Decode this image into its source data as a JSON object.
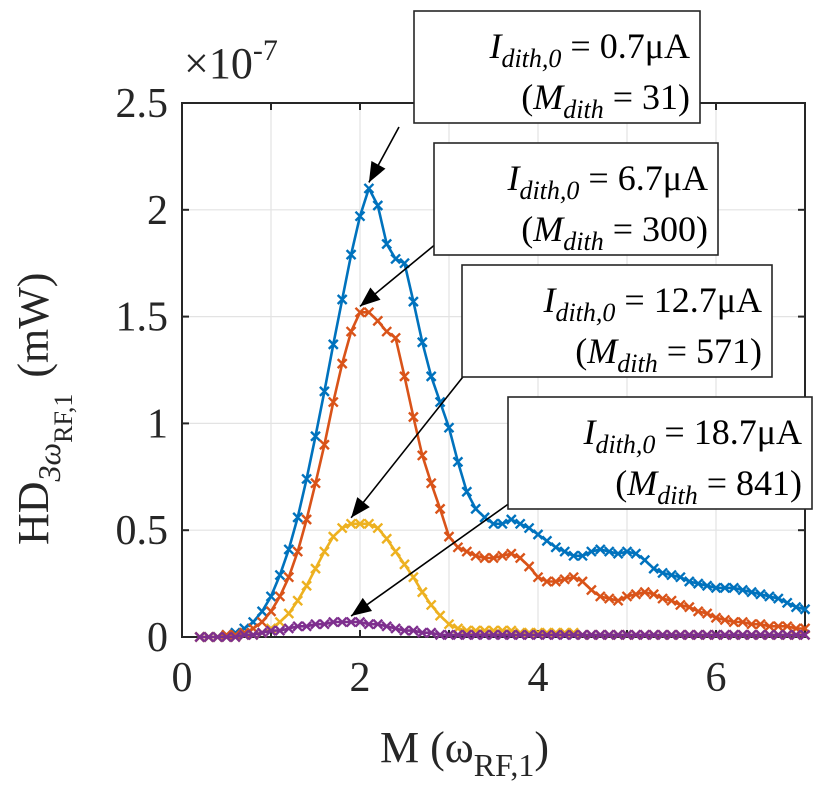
{
  "chart_data": {
    "type": "line",
    "xlabel_main": "M (ω",
    "xlabel_sub": "RF,1",
    "xlabel_close": ")",
    "ylabel_main": "HD",
    "ylabel_sub": "3ω",
    "ylabel_subsub": "RF,1",
    "ylabel_unit": "(mW)",
    "y_exponent_base": "×10",
    "y_exponent_power": "-7",
    "xlim": [
      0,
      7
    ],
    "ylim": [
      0,
      2.5
    ],
    "x_ticks": [
      0,
      2,
      4,
      6
    ],
    "x_tick_labels": [
      "0",
      "2",
      "4",
      "6"
    ],
    "y_ticks": [
      0,
      0.5,
      1,
      1.5,
      2,
      2.5
    ],
    "y_tick_labels": [
      "0",
      "0.5",
      "1",
      "1.5",
      "2",
      "2.5"
    ],
    "grid": true,
    "series": [
      {
        "color": "#0072BD",
        "x": [
          0.2,
          0.3,
          0.4,
          0.5,
          0.6,
          0.7,
          0.8,
          0.9,
          1.0,
          1.1,
          1.2,
          1.3,
          1.4,
          1.5,
          1.6,
          1.7,
          1.8,
          1.9,
          2.0,
          2.1,
          2.2,
          2.3,
          2.4,
          2.5,
          2.6,
          2.7,
          2.8,
          2.9,
          3.0,
          3.1,
          3.2,
          3.3,
          3.4,
          3.5,
          3.6,
          3.7,
          3.8,
          3.9,
          4.0,
          4.1,
          4.2,
          4.3,
          4.4,
          4.5,
          4.6,
          4.7,
          4.8,
          4.9,
          5.0,
          5.1,
          5.2,
          5.3,
          5.4,
          5.5,
          5.6,
          5.7,
          5.8,
          5.9,
          6.0,
          6.1,
          6.2,
          6.3,
          6.4,
          6.5,
          6.6,
          6.7,
          6.8,
          6.9,
          7.0
        ],
        "y": [
          0.0,
          0.0,
          0.0,
          0.01,
          0.02,
          0.04,
          0.07,
          0.12,
          0.19,
          0.29,
          0.41,
          0.56,
          0.74,
          0.94,
          1.15,
          1.37,
          1.58,
          1.79,
          1.97,
          2.1,
          2.02,
          1.84,
          1.77,
          1.75,
          1.57,
          1.38,
          1.22,
          1.1,
          0.98,
          0.82,
          0.68,
          0.6,
          0.56,
          0.53,
          0.53,
          0.55,
          0.53,
          0.51,
          0.48,
          0.45,
          0.42,
          0.4,
          0.38,
          0.38,
          0.4,
          0.41,
          0.4,
          0.39,
          0.4,
          0.39,
          0.36,
          0.32,
          0.3,
          0.29,
          0.28,
          0.26,
          0.25,
          0.24,
          0.23,
          0.23,
          0.23,
          0.22,
          0.21,
          0.2,
          0.19,
          0.18,
          0.16,
          0.14,
          0.13
        ]
      },
      {
        "color": "#D95319",
        "x": [
          0.2,
          0.3,
          0.4,
          0.5,
          0.6,
          0.7,
          0.8,
          0.9,
          1.0,
          1.1,
          1.2,
          1.3,
          1.4,
          1.5,
          1.6,
          1.7,
          1.8,
          1.9,
          2.0,
          2.1,
          2.2,
          2.3,
          2.4,
          2.5,
          2.6,
          2.7,
          2.8,
          2.9,
          3.0,
          3.1,
          3.2,
          3.3,
          3.4,
          3.5,
          3.6,
          3.7,
          3.8,
          3.9,
          4.0,
          4.1,
          4.2,
          4.3,
          4.4,
          4.5,
          4.6,
          4.7,
          4.8,
          4.9,
          5.0,
          5.1,
          5.2,
          5.3,
          5.4,
          5.5,
          5.6,
          5.7,
          5.8,
          5.9,
          6.0,
          6.1,
          6.2,
          6.3,
          6.4,
          6.5,
          6.6,
          6.7,
          6.8,
          6.9,
          7.0
        ],
        "y": [
          0.0,
          0.0,
          0.0,
          0.01,
          0.01,
          0.02,
          0.04,
          0.07,
          0.12,
          0.19,
          0.28,
          0.4,
          0.55,
          0.72,
          0.9,
          1.1,
          1.28,
          1.43,
          1.52,
          1.52,
          1.48,
          1.43,
          1.4,
          1.22,
          1.03,
          0.85,
          0.72,
          0.6,
          0.47,
          0.42,
          0.4,
          0.38,
          0.37,
          0.37,
          0.38,
          0.39,
          0.37,
          0.33,
          0.28,
          0.26,
          0.26,
          0.27,
          0.28,
          0.26,
          0.22,
          0.19,
          0.18,
          0.17,
          0.19,
          0.2,
          0.21,
          0.2,
          0.18,
          0.17,
          0.15,
          0.14,
          0.12,
          0.11,
          0.09,
          0.08,
          0.07,
          0.07,
          0.06,
          0.06,
          0.05,
          0.05,
          0.05,
          0.04,
          0.04
        ]
      },
      {
        "color": "#EDB120",
        "x": [
          0.2,
          0.3,
          0.4,
          0.5,
          0.6,
          0.7,
          0.8,
          0.9,
          1.0,
          1.1,
          1.2,
          1.3,
          1.4,
          1.5,
          1.6,
          1.7,
          1.8,
          1.9,
          2.0,
          2.1,
          2.2,
          2.3,
          2.4,
          2.5,
          2.6,
          2.7,
          2.8,
          2.9,
          3.0,
          3.1,
          3.2,
          3.3,
          3.4,
          3.5,
          3.6,
          3.7,
          3.8,
          3.9,
          4.0,
          4.1,
          4.2,
          4.3,
          4.4,
          4.5,
          4.6,
          4.7,
          4.8,
          4.9,
          5.0,
          5.1,
          5.2,
          5.3,
          5.4,
          5.5,
          5.6,
          5.7,
          5.8,
          5.9,
          6.0,
          6.1,
          6.2,
          6.3,
          6.4,
          6.5,
          6.6,
          6.7,
          6.8,
          6.9,
          7.0
        ],
        "y": [
          0.0,
          0.0,
          0.0,
          0.0,
          0.0,
          0.01,
          0.01,
          0.02,
          0.04,
          0.07,
          0.11,
          0.17,
          0.24,
          0.32,
          0.4,
          0.47,
          0.51,
          0.53,
          0.53,
          0.53,
          0.51,
          0.46,
          0.4,
          0.34,
          0.28,
          0.21,
          0.15,
          0.1,
          0.06,
          0.04,
          0.03,
          0.03,
          0.03,
          0.03,
          0.03,
          0.03,
          0.02,
          0.02,
          0.02,
          0.02,
          0.02,
          0.02,
          0.02,
          0.01,
          0.01,
          0.01,
          0.01,
          0.01,
          0.01,
          0.01,
          0.01,
          0.01,
          0.01,
          0.01,
          0.01,
          0.01,
          0.01,
          0.01,
          0.01,
          0.01,
          0.01,
          0.01,
          0.01,
          0.01,
          0.01,
          0.01,
          0.01,
          0.01,
          0.01
        ]
      },
      {
        "color": "#7E2F8E",
        "x": [
          0.2,
          0.3,
          0.4,
          0.5,
          0.6,
          0.7,
          0.8,
          0.9,
          1.0,
          1.1,
          1.2,
          1.3,
          1.4,
          1.5,
          1.6,
          1.7,
          1.8,
          1.9,
          2.0,
          2.1,
          2.2,
          2.3,
          2.4,
          2.5,
          2.6,
          2.7,
          2.8,
          2.9,
          3.0,
          3.1,
          3.2,
          3.3,
          3.4,
          3.5,
          3.6,
          3.7,
          3.8,
          3.9,
          4.0,
          4.1,
          4.2,
          4.3,
          4.4,
          4.5,
          4.6,
          4.7,
          4.8,
          4.9,
          5.0,
          5.1,
          5.2,
          5.3,
          5.4,
          5.5,
          5.6,
          5.7,
          5.8,
          5.9,
          6.0,
          6.1,
          6.2,
          6.3,
          6.4,
          6.5,
          6.6,
          6.7,
          6.8,
          6.9,
          7.0
        ],
        "y": [
          0.0,
          0.0,
          0.0,
          0.0,
          0.0,
          0.01,
          0.01,
          0.02,
          0.03,
          0.03,
          0.04,
          0.05,
          0.05,
          0.06,
          0.06,
          0.07,
          0.07,
          0.07,
          0.07,
          0.06,
          0.06,
          0.05,
          0.04,
          0.03,
          0.03,
          0.02,
          0.02,
          0.01,
          0.01,
          0.01,
          0.01,
          0.01,
          0.01,
          0.01,
          0.01,
          0.01,
          0.01,
          0.01,
          0.01,
          0.01,
          0.01,
          0.01,
          0.01,
          0.01,
          0.01,
          0.01,
          0.01,
          0.01,
          0.01,
          0.01,
          0.01,
          0.01,
          0.01,
          0.01,
          0.01,
          0.01,
          0.01,
          0.01,
          0.01,
          0.01,
          0.01,
          0.01,
          0.01,
          0.01,
          0.01,
          0.01,
          0.01,
          0.01,
          0.01
        ]
      }
    ],
    "annotations": [
      {
        "line1_var": "I",
        "line1_sub": "dith,0",
        "line1_rest": " = 0.7μA",
        "line2_open": "(",
        "line2_var": "M",
        "line2_sub": "dith",
        "line2_rest": " = 31)",
        "point": [
          2.1,
          2.1
        ]
      },
      {
        "line1_var": "I",
        "line1_sub": "dith,0",
        "line1_rest": " = 6.7μA",
        "line2_open": "(",
        "line2_var": "M",
        "line2_sub": "dith",
        "line2_rest": " = 300)",
        "point": [
          2.0,
          1.52
        ]
      },
      {
        "line1_var": "I",
        "line1_sub": "dith,0",
        "line1_rest": " = 12.7μA",
        "line2_open": "(",
        "line2_var": "M",
        "line2_sub": "dith",
        "line2_rest": " = 571)",
        "point": [
          1.9,
          0.53
        ]
      },
      {
        "line1_var": "I",
        "line1_sub": "dith,0",
        "line1_rest": " = 18.7μA",
        "line2_open": "(",
        "line2_var": "M",
        "line2_sub": "dith",
        "line2_rest": " = 841)",
        "point": [
          1.9,
          0.07
        ]
      }
    ]
  }
}
